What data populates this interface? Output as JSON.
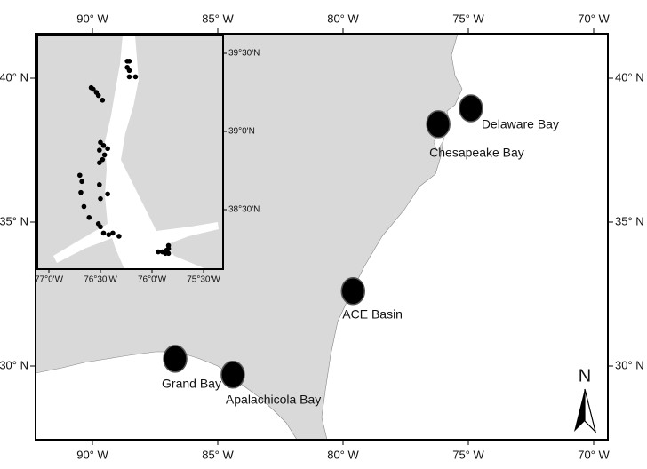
{
  "map": {
    "lon_ticks": [
      {
        "value": -90,
        "label": "90° W"
      },
      {
        "value": -85,
        "label": "85° W"
      },
      {
        "value": -80,
        "label": "80° W"
      },
      {
        "value": -75,
        "label": "75° W"
      },
      {
        "value": -70,
        "label": "70° W"
      }
    ],
    "lat_ticks": [
      {
        "value": 40,
        "label": "40° N"
      },
      {
        "value": 35,
        "label": "35° N"
      },
      {
        "value": 30,
        "label": "30° N"
      }
    ],
    "sites": [
      {
        "name": "Delaware Bay",
        "lon": -74.9,
        "lat": 38.95
      },
      {
        "name": "Chesapeake Bay",
        "lon": -76.2,
        "lat": 38.4
      },
      {
        "name": "ACE Basin",
        "lon": -79.6,
        "lat": 32.6
      },
      {
        "name": "Grand Bay",
        "lon": -86.7,
        "lat": 30.25
      },
      {
        "name": "Apalachicola Bay",
        "lon": -84.4,
        "lat": 29.7
      }
    ],
    "north": "N",
    "inset": {
      "lon_ticks": [
        {
          "value": -77,
          "label": "77°0'W"
        },
        {
          "value": -76.5,
          "label": "76°30'W"
        },
        {
          "value": -76,
          "label": "76°0'W"
        },
        {
          "value": -75.5,
          "label": "75°30'W"
        }
      ],
      "lat_ticks": [
        {
          "value": 39.5,
          "label": "39°30'N"
        },
        {
          "value": 39,
          "label": "39°0'N"
        },
        {
          "value": 38.5,
          "label": "38°30'N"
        }
      ],
      "points": [
        {
          "lon": -76.24,
          "lat": 39.45
        },
        {
          "lon": -76.22,
          "lat": 39.45
        },
        {
          "lon": -76.24,
          "lat": 39.41
        },
        {
          "lon": -76.22,
          "lat": 39.39
        },
        {
          "lon": -76.22,
          "lat": 39.35
        },
        {
          "lon": -76.16,
          "lat": 39.35
        },
        {
          "lon": -76.59,
          "lat": 39.28
        },
        {
          "lon": -76.57,
          "lat": 39.27
        },
        {
          "lon": -76.54,
          "lat": 39.25
        },
        {
          "lon": -76.52,
          "lat": 39.23
        },
        {
          "lon": -76.48,
          "lat": 39.2
        },
        {
          "lon": -76.5,
          "lat": 38.93
        },
        {
          "lon": -76.47,
          "lat": 38.91
        },
        {
          "lon": -76.43,
          "lat": 38.89
        },
        {
          "lon": -76.51,
          "lat": 38.88
        },
        {
          "lon": -76.46,
          "lat": 38.85
        },
        {
          "lon": -76.48,
          "lat": 38.82
        },
        {
          "lon": -76.51,
          "lat": 38.8
        },
        {
          "lon": -76.7,
          "lat": 38.72
        },
        {
          "lon": -76.68,
          "lat": 38.68
        },
        {
          "lon": -76.51,
          "lat": 38.66
        },
        {
          "lon": -76.69,
          "lat": 38.61
        },
        {
          "lon": -76.43,
          "lat": 38.6
        },
        {
          "lon": -76.5,
          "lat": 38.57
        },
        {
          "lon": -76.66,
          "lat": 38.52
        },
        {
          "lon": -76.61,
          "lat": 38.45
        },
        {
          "lon": -76.52,
          "lat": 38.41
        },
        {
          "lon": -76.5,
          "lat": 38.39
        },
        {
          "lon": -76.47,
          "lat": 38.35
        },
        {
          "lon": -76.42,
          "lat": 38.34
        },
        {
          "lon": -76.38,
          "lat": 38.35
        },
        {
          "lon": -76.32,
          "lat": 38.33
        },
        {
          "lon": -75.94,
          "lat": 38.23
        },
        {
          "lon": -75.9,
          "lat": 38.23
        },
        {
          "lon": -75.86,
          "lat": 38.24
        },
        {
          "lon": -75.84,
          "lat": 38.25
        },
        {
          "lon": -75.84,
          "lat": 38.27
        },
        {
          "lon": -75.87,
          "lat": 38.22
        },
        {
          "lon": -75.84,
          "lat": 38.22
        }
      ]
    }
  }
}
